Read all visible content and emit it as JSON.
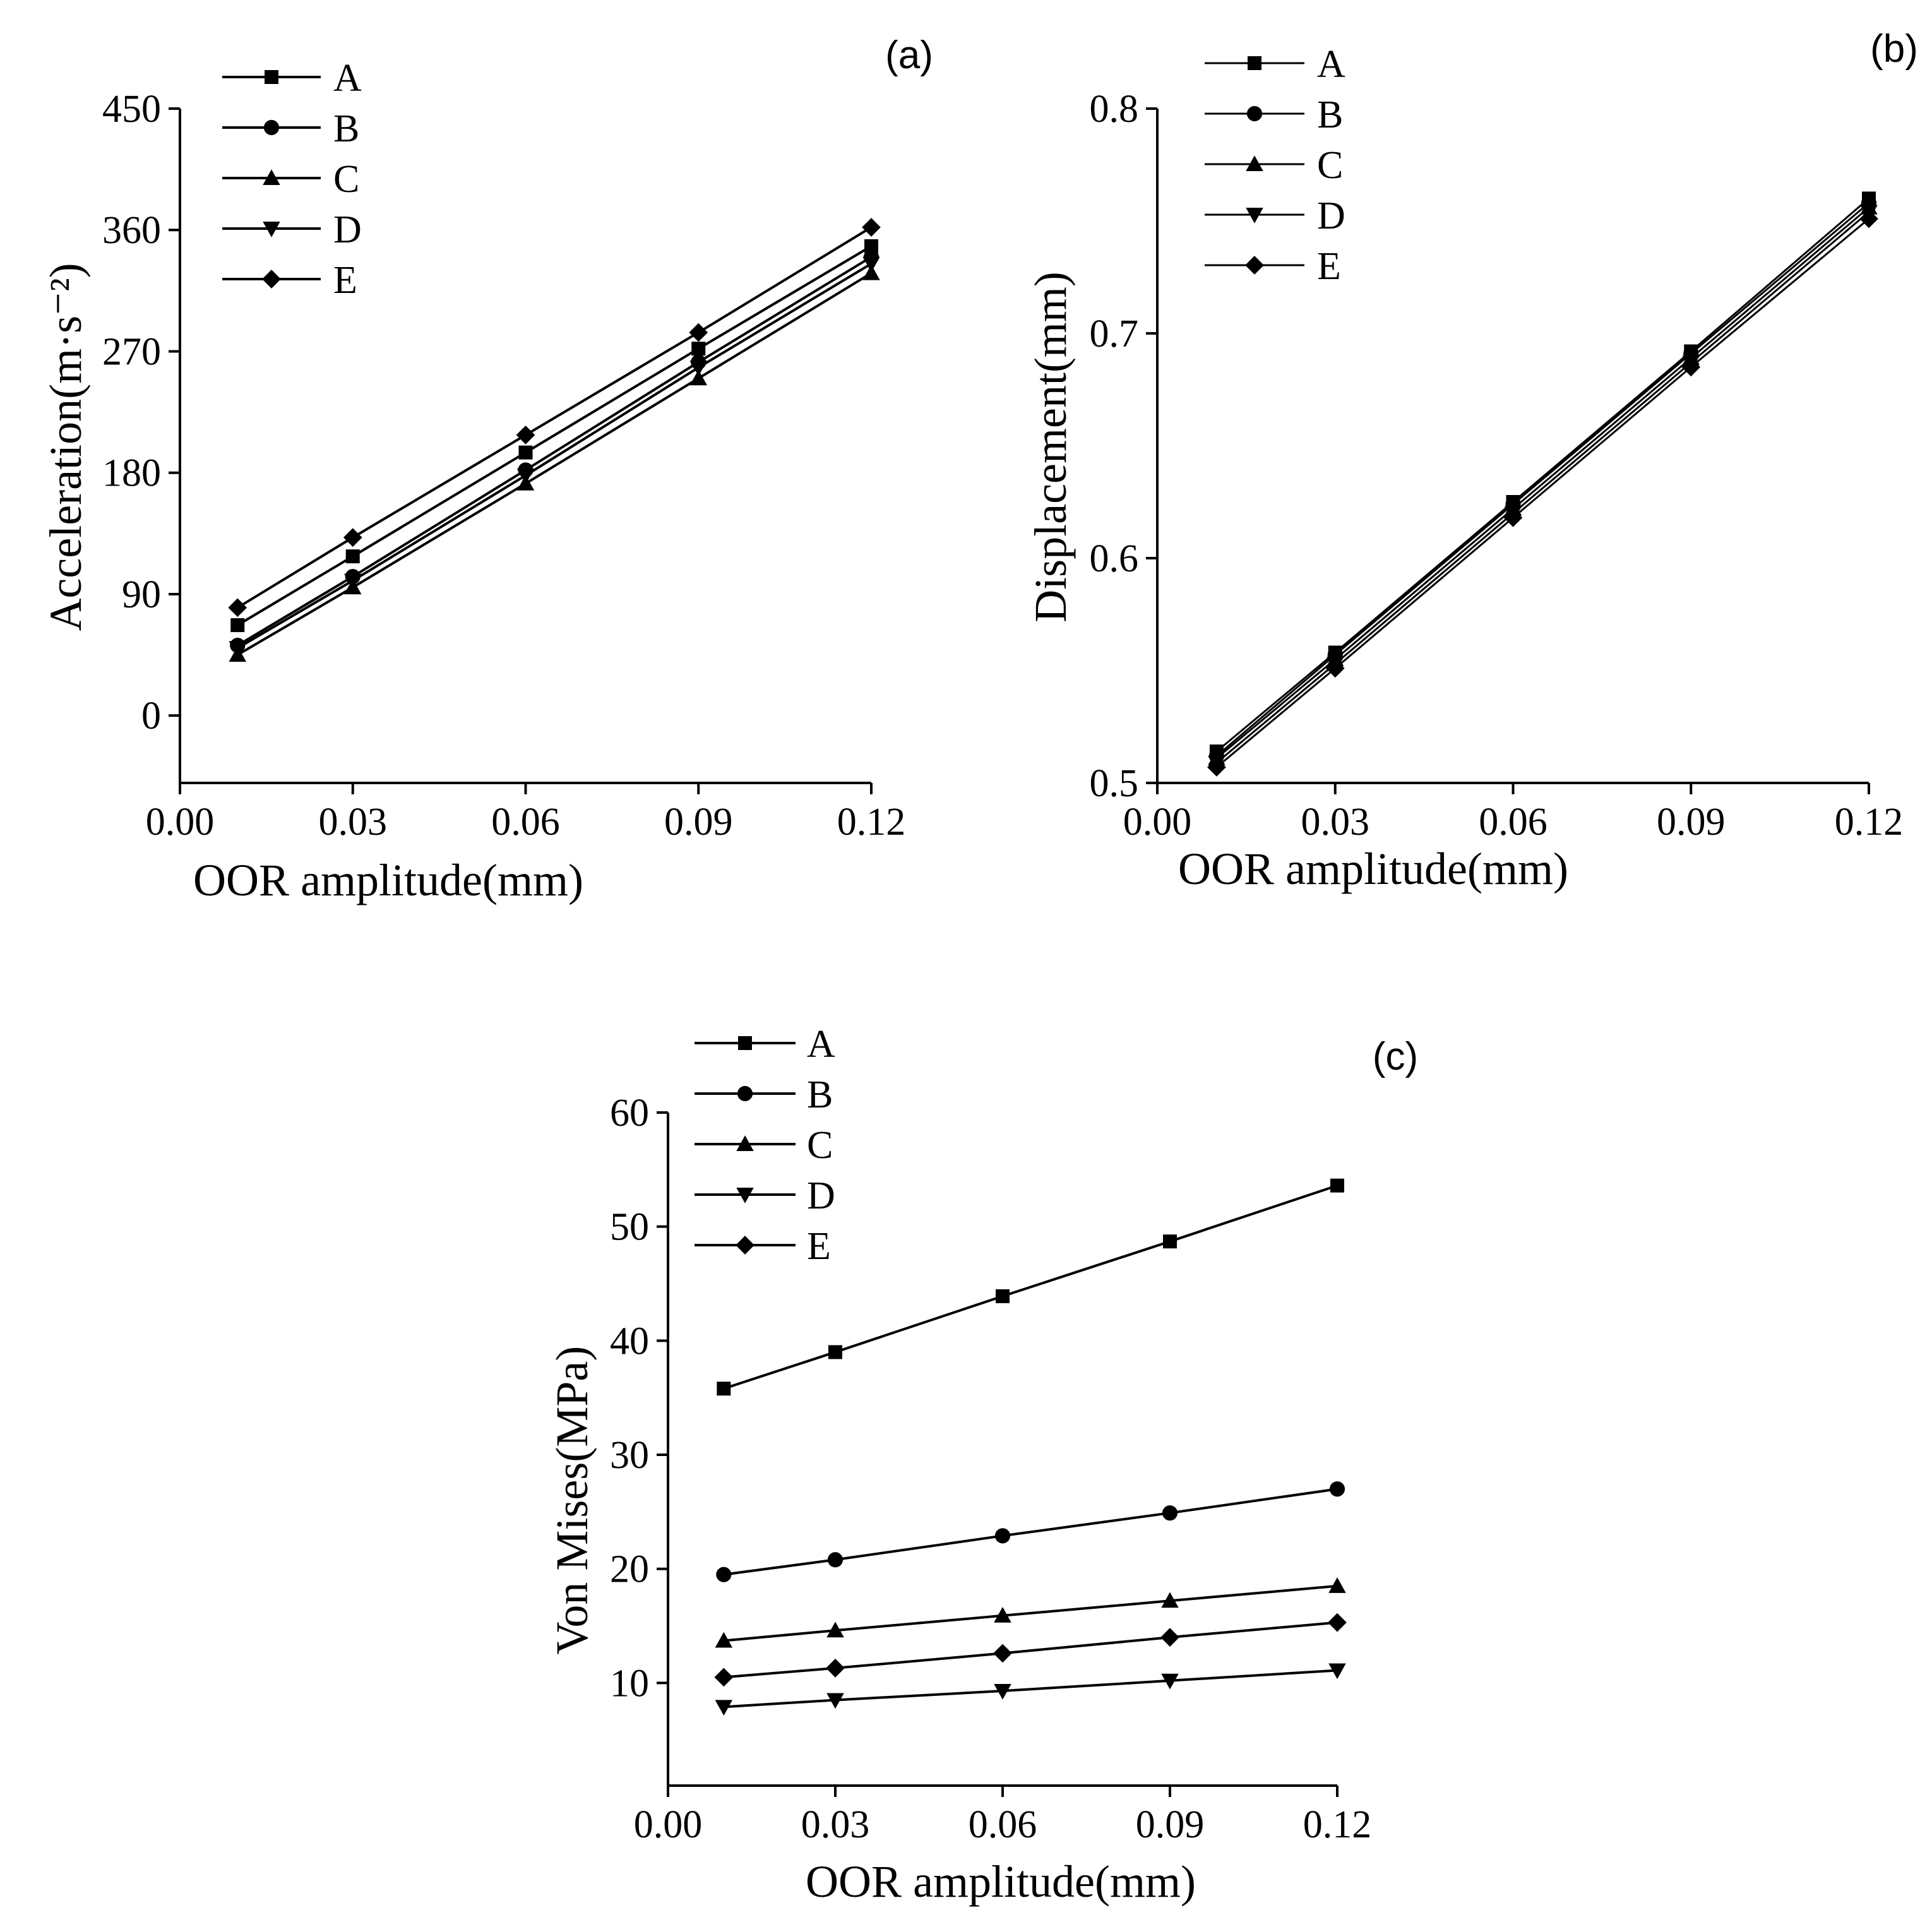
{
  "figure": {
    "background": "#ffffff",
    "line_color": "#000000"
  },
  "chart_data": [
    {
      "id": "a",
      "type": "line",
      "panel_label": "(a)",
      "xlabel": "OOR amplitude(mm)",
      "ylabel": "Acceleration(m·s⁻²)",
      "xlim": [
        0.0,
        0.12
      ],
      "ylim": [
        -50,
        450
      ],
      "xticks": [
        "0.00",
        "0.03",
        "0.06",
        "0.09",
        "0.12"
      ],
      "yticks": [
        "0",
        "90",
        "180",
        "270",
        "360",
        "450"
      ],
      "grid": false,
      "legend_position": "top-left",
      "x": [
        0.01,
        0.03,
        0.06,
        0.09,
        0.12
      ],
      "series": [
        {
          "name": "A",
          "marker": "square",
          "values": [
            67,
            118,
            195,
            272,
            348
          ]
        },
        {
          "name": "B",
          "marker": "circle",
          "values": [
            52,
            103,
            182,
            262,
            340
          ]
        },
        {
          "name": "C",
          "marker": "triangle-up",
          "values": [
            45,
            95,
            172,
            250,
            328
          ]
        },
        {
          "name": "D",
          "marker": "triangle-down",
          "values": [
            50,
            100,
            178,
            258,
            335
          ]
        },
        {
          "name": "E",
          "marker": "diamond",
          "values": [
            80,
            132,
            208,
            284,
            362
          ]
        }
      ]
    },
    {
      "id": "b",
      "type": "line",
      "panel_label": "(b)",
      "xlabel": "OOR amplitude(mm)",
      "ylabel": "Displacement(mm)",
      "xlim": [
        0.0,
        0.12
      ],
      "ylim": [
        0.5,
        0.8
      ],
      "xticks": [
        "0.00",
        "0.03",
        "0.06",
        "0.09",
        "0.12"
      ],
      "yticks": [
        "0.5",
        "0.6",
        "0.7",
        "0.8"
      ],
      "grid": false,
      "legend_position": "top-left",
      "x": [
        0.01,
        0.03,
        0.06,
        0.09,
        0.12
      ],
      "series": [
        {
          "name": "A",
          "marker": "square",
          "values": [
            0.514,
            0.558,
            0.625,
            0.692,
            0.76
          ]
        },
        {
          "name": "B",
          "marker": "circle",
          "values": [
            0.512,
            0.557,
            0.624,
            0.691,
            0.758
          ]
        },
        {
          "name": "C",
          "marker": "triangle-up",
          "values": [
            0.511,
            0.555,
            0.622,
            0.689,
            0.756
          ]
        },
        {
          "name": "D",
          "marker": "triangle-down",
          "values": [
            0.509,
            0.553,
            0.62,
            0.687,
            0.754
          ]
        },
        {
          "name": "E",
          "marker": "diamond",
          "values": [
            0.507,
            0.551,
            0.618,
            0.685,
            0.751
          ]
        }
      ]
    },
    {
      "id": "c",
      "type": "line",
      "panel_label": "(c)",
      "xlabel": "OOR amplitude(mm)",
      "ylabel": "Von Mises(MPa)",
      "xlim": [
        0.0,
        0.12
      ],
      "ylim": [
        1,
        60
      ],
      "xticks": [
        "0.00",
        "0.03",
        "0.06",
        "0.09",
        "0.12"
      ],
      "yticks": [
        "10",
        "20",
        "30",
        "40",
        "50",
        "60"
      ],
      "grid": false,
      "legend_position": "top-left",
      "x": [
        0.01,
        0.03,
        0.06,
        0.09,
        0.12
      ],
      "series": [
        {
          "name": "A",
          "marker": "square",
          "values": [
            35.8,
            39.0,
            43.9,
            48.7,
            53.6
          ]
        },
        {
          "name": "B",
          "marker": "circle",
          "values": [
            19.5,
            20.8,
            22.9,
            24.9,
            27.0
          ]
        },
        {
          "name": "C",
          "marker": "triangle-up",
          "values": [
            13.7,
            14.6,
            15.9,
            17.2,
            18.5
          ]
        },
        {
          "name": "D",
          "marker": "triangle-down",
          "values": [
            7.9,
            8.5,
            9.3,
            10.2,
            11.1
          ]
        },
        {
          "name": "E",
          "marker": "diamond",
          "values": [
            10.5,
            11.3,
            12.6,
            14.0,
            15.3
          ]
        }
      ]
    }
  ]
}
